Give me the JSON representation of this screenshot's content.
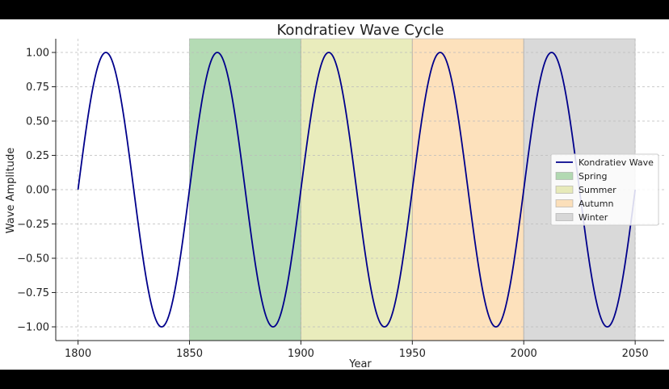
{
  "chart_data": {
    "type": "line",
    "title": "Kondratiev Wave Cycle",
    "xlabel": "Year",
    "ylabel": "Wave Amplitude",
    "xlim": [
      1790,
      2063
    ],
    "ylim": [
      -1.1,
      1.1
    ],
    "xticks": [
      1800,
      1850,
      1900,
      1950,
      2000,
      2050
    ],
    "yticks": [
      1.0,
      0.75,
      0.5,
      0.25,
      0.0,
      -0.25,
      -0.5,
      -0.75,
      -1.0
    ],
    "ytick_labels": [
      "1.00",
      "0.75",
      "0.50",
      "0.25",
      "0.00",
      "−0.25",
      "−0.50",
      "−0.75",
      "−1.00"
    ],
    "grid": true,
    "legend_position": "center-right",
    "series": [
      {
        "name": "Kondratiev Wave",
        "color": "#00008b",
        "function": "sin",
        "amplitude": 1.0,
        "period_years": 50,
        "x_start": 1800,
        "x_end": 2050
      }
    ],
    "spans": [
      {
        "name": "Spring",
        "x0": 1850,
        "x1": 1900,
        "color": "#6ab76a"
      },
      {
        "name": "Summer",
        "x0": 1900,
        "x1": 1950,
        "color": "#d4d97a"
      },
      {
        "name": "Autumn",
        "x0": 1950,
        "x1": 2000,
        "color": "#fbc479"
      },
      {
        "name": "Winter",
        "x0": 2000,
        "x1": 2050,
        "color": "#b4b4b4"
      }
    ],
    "legend": [
      "Kondratiev Wave",
      "Spring",
      "Summer",
      "Autumn",
      "Winter"
    ]
  }
}
